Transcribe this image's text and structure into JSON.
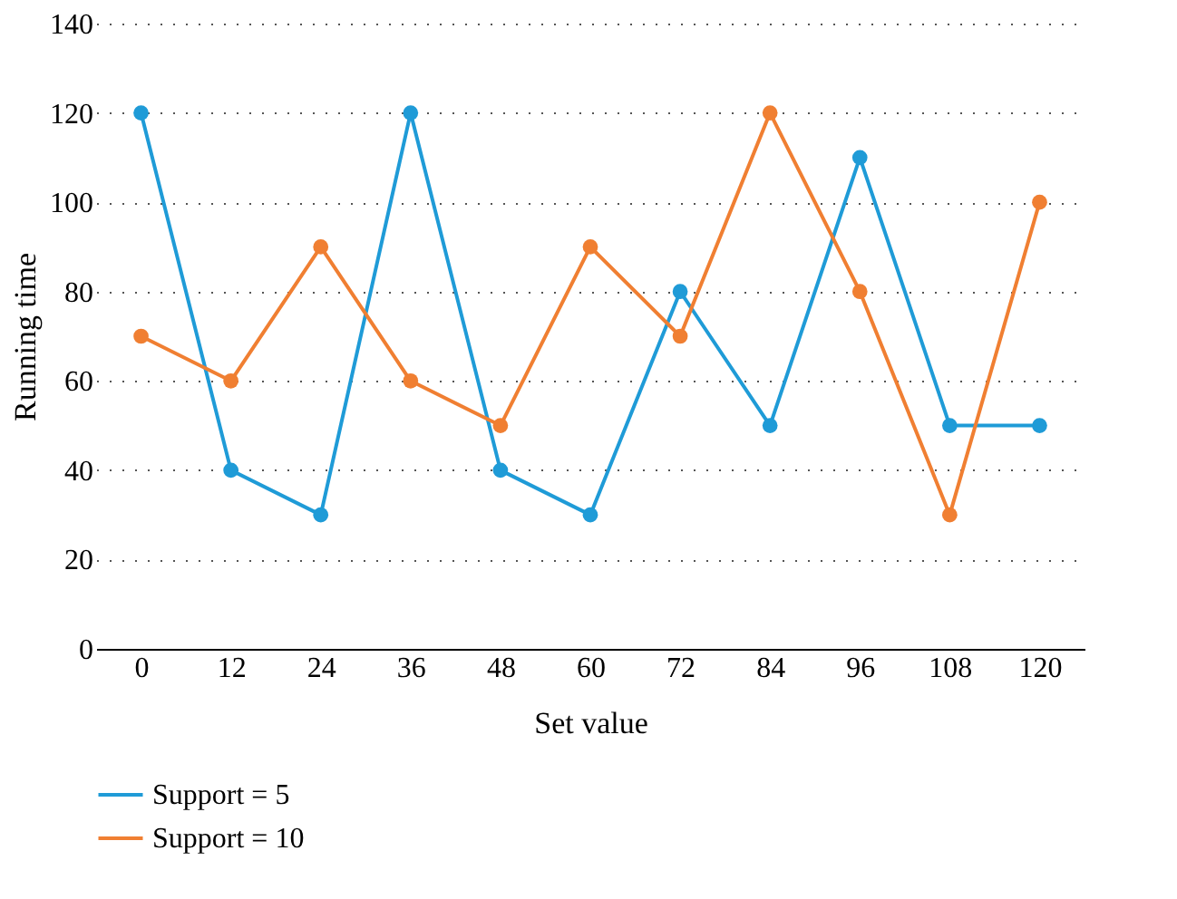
{
  "chart_data": {
    "type": "line",
    "xlabel": "Set value",
    "ylabel": "Running time",
    "categories": [
      "0",
      "12",
      "24",
      "36",
      "48",
      "60",
      "72",
      "84",
      "96",
      "108",
      "120"
    ],
    "series": [
      {
        "name": "Support = 5",
        "color": "#1f9bd7",
        "values": [
          120,
          40,
          30,
          120,
          40,
          30,
          80,
          50,
          110,
          50,
          50
        ]
      },
      {
        "name": "Support = 10",
        "color": "#f07f32",
        "values": [
          70,
          60,
          90,
          60,
          50,
          90,
          70,
          120,
          80,
          30,
          100
        ]
      }
    ],
    "ylim": [
      0,
      140
    ],
    "yticks": [
      0,
      20,
      40,
      60,
      80,
      100,
      120,
      140
    ],
    "grid": "y",
    "legend": "bottom",
    "marker": "circle",
    "line_style": "solid"
  }
}
